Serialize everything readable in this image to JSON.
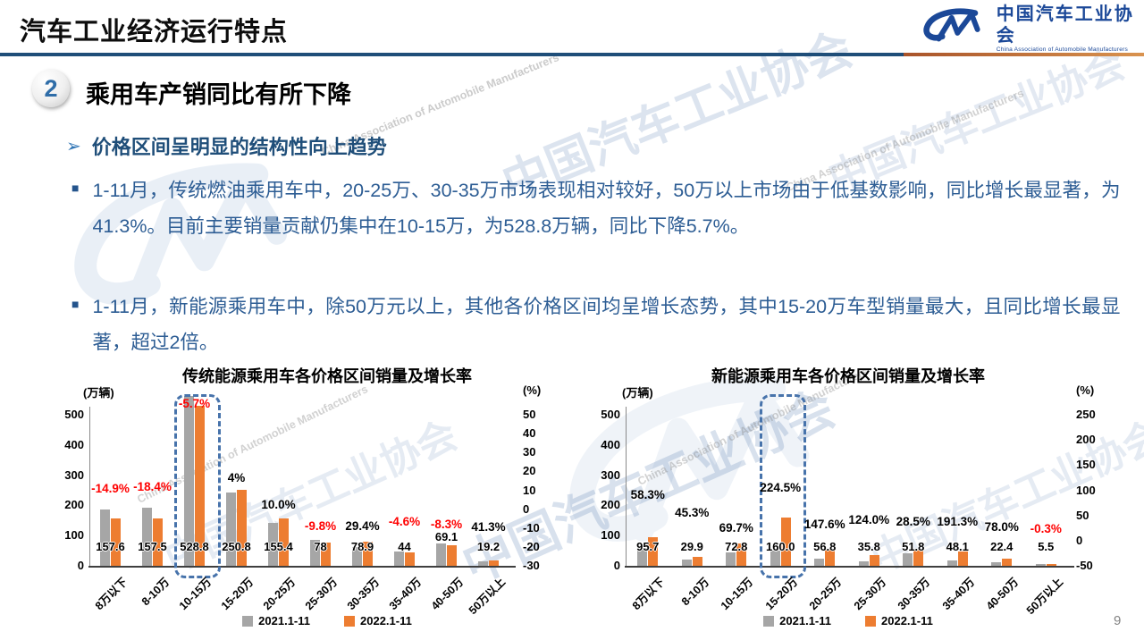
{
  "header": {
    "title": "汽车工业经济运行特点",
    "logo": {
      "zh": "中国汽车工业协会",
      "en": "China Association of Automobile Manufacturers"
    }
  },
  "section": {
    "number": "2",
    "title": "乘用车产销同比有所下降"
  },
  "bullets": {
    "arrow": "➢",
    "square": "■"
  },
  "subheading": "价格区间呈明显的结构性向上趋势",
  "paragraphs": [
    "1-11月，传统燃油乘用车中，20-25万、30-35万市场表现相对较好，50万以上市场由于低基数影响，同比增长最显著，为41.3%。目前主要销量贡献仍集中在10-15万，为528.8万辆，同比下降5.7%。",
    "1-11月，新能源乘用车中，除50万元以上，其他各价格区间均呈增长态势，其中15-20万车型销量最大，且同比增长最显著，超过2倍。"
  ],
  "page_number": "9",
  "colors": {
    "bar_2021": "#a6a6a6",
    "bar_2022": "#ed7d31",
    "growth_negative": "#ff0000",
    "growth_positive": "#000000",
    "body_text_blue": "#2d5d94",
    "heading_blue": "#1f4e79",
    "logo_blue": "#1b4898",
    "highlight_box_blue": "#4773ab"
  },
  "chart_data": [
    {
      "type": "bar",
      "title": "传统能源乘用车各价格区间销量及增长率",
      "unit_left": "(万辆)",
      "unit_right": "(%)",
      "categories": [
        "8万以下",
        "8-10万",
        "10-15万",
        "15-20万",
        "20-25万",
        "25-30万",
        "30-35万",
        "35-40万",
        "40-50万",
        "50万以上"
      ],
      "series": [
        {
          "name": "2021.1-11",
          "values": [
            185.2,
            193.0,
            560.8,
            241.2,
            141.3,
            86.5,
            61.0,
            46.1,
            75.4,
            13.6
          ]
        },
        {
          "name": "2022.1-11",
          "values": [
            157.6,
            157.5,
            528.8,
            250.8,
            155.4,
            78,
            78.9,
            44,
            69.1,
            19.2
          ]
        }
      ],
      "value_labels": [
        "157.6",
        "157.5",
        "528.8",
        "250.8",
        "155.4",
        "78",
        "78.9",
        "44",
        "69.1",
        "19.2"
      ],
      "growth_labels": [
        "-14.9%",
        "-18.4%",
        "-5.7%",
        "4%",
        "10.0%",
        "-9.8%",
        "29.4%",
        "-4.6%",
        "-8.3%",
        "41.3%"
      ],
      "left_axis_ticks": [
        500,
        400,
        300,
        200,
        100,
        0
      ],
      "right_axis_ticks": [
        50,
        40,
        30,
        20,
        10,
        0,
        -10,
        -20,
        -30
      ],
      "right_axis_range": [
        -30,
        50
      ],
      "ylim_left": [
        0,
        500
      ],
      "legend": [
        "2021.1-11",
        "2022.1-11"
      ],
      "highlight_index": 2,
      "highlight_label_in_box": true,
      "layout_hints": {
        "grid": false,
        "legend_position": "bottom",
        "pct_gaps": [
          16,
          16,
          0,
          6,
          8,
          8,
          10,
          26,
          14,
          30
        ],
        "value_raise": {
          "8": 11
        }
      }
    },
    {
      "type": "bar",
      "title": "新能源乘用车各价格区间销量及增长率",
      "unit_left": "(万辆)",
      "unit_right": "(%)",
      "categories": [
        "8万以下",
        "8-10万",
        "10-15万",
        "15-20万",
        "20-25万",
        "25-30万",
        "30-35万",
        "35-40万",
        "40-50万",
        "50万以上"
      ],
      "series": [
        {
          "name": "2021.1-11",
          "values": [
            60.5,
            20.6,
            42.9,
            49.3,
            22.9,
            16.0,
            40.3,
            16.5,
            12.6,
            5.5
          ]
        },
        {
          "name": "2022.1-11",
          "values": [
            95.7,
            29.9,
            72.8,
            160.0,
            56.8,
            35.8,
            51.8,
            48.1,
            22.4,
            5.5
          ]
        }
      ],
      "value_labels": [
        "95.7",
        "29.9",
        "72.8",
        "160.0",
        "56.8",
        "35.8",
        "51.8",
        "48.1",
        "22.4",
        "5.5"
      ],
      "growth_labels": [
        "58.3%",
        "45.3%",
        "69.7%",
        "224.5%",
        "147.6%",
        "124.0%",
        "28.5%",
        "191.3%",
        "78.0%",
        "-0.3%"
      ],
      "left_axis_ticks": [
        500,
        400,
        300,
        200,
        100,
        0
      ],
      "right_axis_ticks": [
        250,
        200,
        150,
        100,
        50,
        0,
        -50
      ],
      "right_axis_range": [
        -50,
        250
      ],
      "ylim_left": [
        0,
        500
      ],
      "legend": [
        "2021.1-11",
        "2022.1-11"
      ],
      "highlight_index": 3,
      "highlight_label_in_box": false,
      "layout_hints": {
        "grid": false,
        "legend_position": "bottom",
        "pct_gaps": [
          40,
          42,
          10,
          26,
          20,
          32,
          24,
          26,
          28,
          32
        ],
        "value_raise": {}
      }
    }
  ]
}
